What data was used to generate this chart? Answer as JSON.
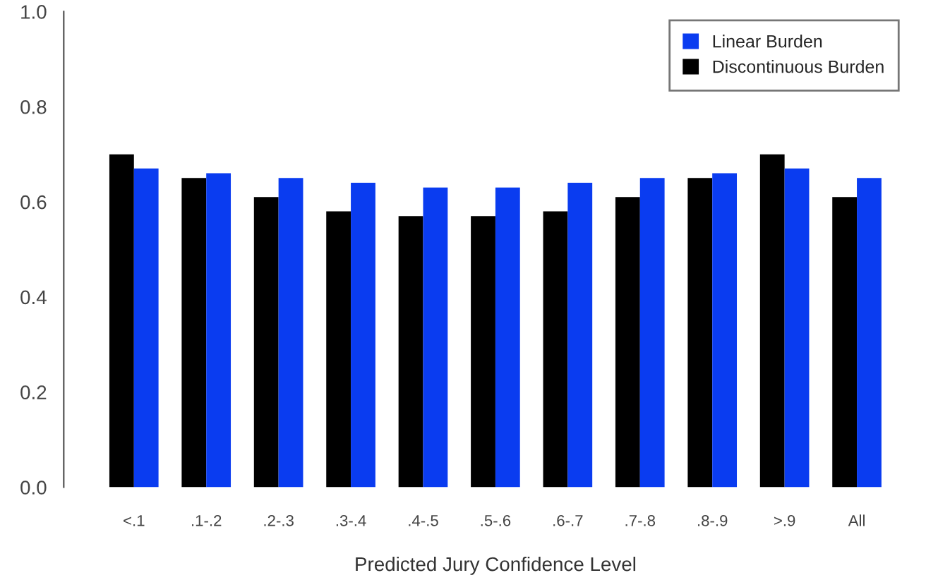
{
  "chart_data": {
    "type": "bar",
    "xlabel": "Predicted Jury Confidence Level",
    "categories": [
      "<.1",
      ".1-.2",
      ".2-.3",
      ".3-.4",
      ".4-.5",
      ".5-.6",
      ".6-.7",
      ".7-.8",
      ".8-.9",
      ">.9",
      "All"
    ],
    "series": [
      {
        "name": "Discontinuous Burden",
        "color": "#000000",
        "values": [
          0.7,
          0.65,
          0.61,
          0.58,
          0.57,
          0.57,
          0.58,
          0.61,
          0.65,
          0.7,
          0.61
        ]
      },
      {
        "name": "Linear Burden",
        "color": "#0a3cf0",
        "values": [
          0.67,
          0.66,
          0.65,
          0.64,
          0.63,
          0.63,
          0.64,
          0.65,
          0.66,
          0.67,
          0.65
        ]
      }
    ],
    "ylim": [
      0,
      1.0
    ],
    "yticks": [
      {
        "value": 0,
        "label": "0.0"
      },
      0.2,
      0.4,
      0.6,
      0.8,
      {
        "value": 1.0,
        "label": "1.0"
      }
    ],
    "grid": false,
    "legend": "top right"
  }
}
